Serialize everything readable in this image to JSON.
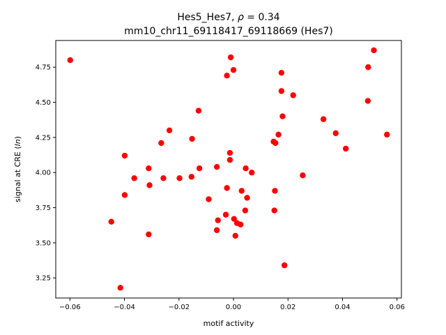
{
  "chart_data": {
    "type": "scatter",
    "title": "Hes5_Hes7, ρ = 0.34",
    "title_parts": {
      "prefix": "Hes5_Hes7, ",
      "symbol": "ρ",
      "suffix": " = 0.34"
    },
    "subtitle": "mm10_chr11_69118417_69118669 (Hes7)",
    "xlabel": "motif activity",
    "ylabel": "signal at CRE (ln)",
    "ylabel_parts": {
      "prefix": "signal at CRE (",
      "italic": "ln",
      "suffix": ")"
    },
    "xlim": [
      -0.0652,
      0.0616
    ],
    "ylim": [
      3.107,
      4.94
    ],
    "xticks": [
      -0.06,
      -0.04,
      -0.02,
      0.0,
      0.02,
      0.04,
      0.06
    ],
    "xtick_labels": [
      "−0.06",
      "−0.04",
      "−0.02",
      "0.00",
      "0.02",
      "0.04",
      "0.06"
    ],
    "yticks": [
      3.25,
      3.5,
      3.75,
      4.0,
      4.25,
      4.5,
      4.75
    ],
    "ytick_labels": [
      "3.25",
      "3.50",
      "3.75",
      "4.00",
      "4.25",
      "4.50",
      "4.75"
    ],
    "marker_color": "#ff0000",
    "grid": false,
    "legend": "none",
    "points": [
      {
        "x": -0.0599,
        "y": 4.8
      },
      {
        "x": -0.0448,
        "y": 3.65
      },
      {
        "x": -0.0415,
        "y": 3.18
      },
      {
        "x": -0.0399,
        "y": 4.12
      },
      {
        "x": -0.0399,
        "y": 3.84
      },
      {
        "x": -0.0364,
        "y": 3.96
      },
      {
        "x": -0.0311,
        "y": 4.03
      },
      {
        "x": -0.0308,
        "y": 3.91
      },
      {
        "x": -0.0311,
        "y": 3.56
      },
      {
        "x": -0.0265,
        "y": 4.21
      },
      {
        "x": -0.0257,
        "y": 3.96
      },
      {
        "x": -0.0235,
        "y": 4.3
      },
      {
        "x": -0.0198,
        "y": 3.96
      },
      {
        "x": -0.0152,
        "y": 4.24
      },
      {
        "x": -0.0154,
        "y": 3.97
      },
      {
        "x": -0.0128,
        "y": 4.44
      },
      {
        "x": -0.0125,
        "y": 4.03
      },
      {
        "x": -0.0091,
        "y": 3.81
      },
      {
        "x": -0.0061,
        "y": 4.04
      },
      {
        "x": -0.0057,
        "y": 3.66
      },
      {
        "x": -0.0061,
        "y": 3.59
      },
      {
        "x": -0.0024,
        "y": 4.69
      },
      {
        "x": -0.0028,
        "y": 3.7
      },
      {
        "x": -0.0024,
        "y": 3.89
      },
      {
        "x": -0.001,
        "y": 4.82
      },
      {
        "x": -0.0013,
        "y": 4.14
      },
      {
        "x": -0.0013,
        "y": 4.09
      },
      {
        "x": 0.0,
        "y": 4.73
      },
      {
        "x": 0.0002,
        "y": 3.67
      },
      {
        "x": 0.0007,
        "y": 3.55
      },
      {
        "x": 0.0013,
        "y": 3.64
      },
      {
        "x": 0.0026,
        "y": 3.63
      },
      {
        "x": 0.003,
        "y": 3.87
      },
      {
        "x": 0.0043,
        "y": 3.73
      },
      {
        "x": 0.0045,
        "y": 4.03
      },
      {
        "x": 0.005,
        "y": 3.82
      },
      {
        "x": 0.0067,
        "y": 4.0
      },
      {
        "x": 0.0147,
        "y": 4.22
      },
      {
        "x": 0.0154,
        "y": 4.21
      },
      {
        "x": 0.0152,
        "y": 3.87
      },
      {
        "x": 0.015,
        "y": 3.73
      },
      {
        "x": 0.0165,
        "y": 4.27
      },
      {
        "x": 0.0176,
        "y": 4.71
      },
      {
        "x": 0.0176,
        "y": 4.58
      },
      {
        "x": 0.018,
        "y": 4.4
      },
      {
        "x": 0.0187,
        "y": 3.34
      },
      {
        "x": 0.0219,
        "y": 4.55
      },
      {
        "x": 0.0254,
        "y": 3.98
      },
      {
        "x": 0.033,
        "y": 4.38
      },
      {
        "x": 0.0375,
        "y": 4.28
      },
      {
        "x": 0.0412,
        "y": 4.17
      },
      {
        "x": 0.0493,
        "y": 4.51
      },
      {
        "x": 0.0494,
        "y": 4.75
      },
      {
        "x": 0.0515,
        "y": 4.87
      },
      {
        "x": 0.0563,
        "y": 4.27
      }
    ]
  }
}
